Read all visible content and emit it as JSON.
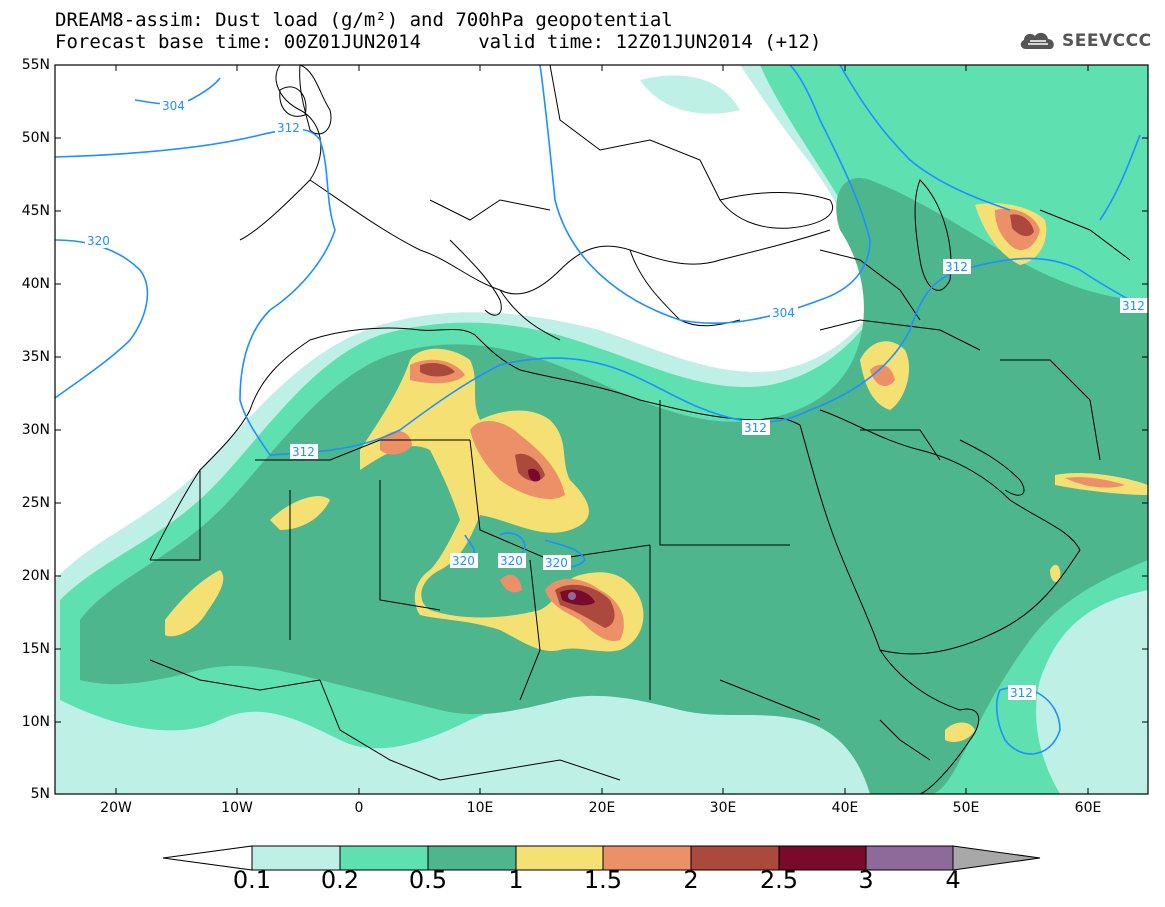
{
  "title": {
    "line1": "DREAM8-assim: Dust load (g/m²) and 700hPa geopotential",
    "line2": "Forecast base time: 00Z01JUN2014     valid time: 12Z01JUN2014 (+12)"
  },
  "logo": {
    "text": "SEEVCCC",
    "icon": "cloud-icon"
  },
  "axes": {
    "lat_labels": [
      "55N",
      "50N",
      "45N",
      "40N",
      "35N",
      "30N",
      "25N",
      "20N",
      "15N",
      "10N",
      "5N"
    ],
    "lon_labels": [
      "20W",
      "10W",
      "0",
      "10E",
      "20E",
      "30E",
      "40E",
      "50E",
      "60E"
    ]
  },
  "contour_labels": [
    {
      "text": "304",
      "name": "contour-label-304-west"
    },
    {
      "text": "312",
      "name": "contour-label-312-north"
    },
    {
      "text": "320",
      "name": "contour-label-320-atlantic"
    },
    {
      "text": "312",
      "name": "contour-label-312-morocco"
    },
    {
      "text": "320",
      "name": "contour-label-320-a"
    },
    {
      "text": "320",
      "name": "contour-label-320-b"
    },
    {
      "text": "320",
      "name": "contour-label-320-c"
    },
    {
      "text": "304",
      "name": "contour-label-304-med"
    },
    {
      "text": "312",
      "name": "contour-label-312-egypt"
    },
    {
      "text": "312",
      "name": "contour-label-312-caspian"
    },
    {
      "text": "312",
      "name": "contour-label-312-east"
    },
    {
      "text": "312",
      "name": "contour-label-312-arabian-sea"
    }
  ],
  "colorbar": {
    "labels": [
      "0.1",
      "0.2",
      "0.5",
      "1",
      "1.5",
      "2",
      "2.5",
      "3",
      "4"
    ],
    "colors": [
      "#ffffff",
      "#bff0e6",
      "#5fe0b0",
      "#4db68c",
      "#f5e173",
      "#ec9068",
      "#ab4a3c",
      "#7a0a2c",
      "#8e6a9c",
      "#a8a8a8"
    ]
  },
  "colors": {
    "level_0_1": "#bff0e6",
    "level_0_2": "#5fe0b0",
    "level_0_5": "#4db68c",
    "level_1": "#f5e173",
    "level_1_5": "#ec9068",
    "level_2": "#ab4a3c",
    "level_2_5": "#7a0a2c",
    "level_3": "#8e6a9c",
    "contour": "#1e90ff"
  }
}
